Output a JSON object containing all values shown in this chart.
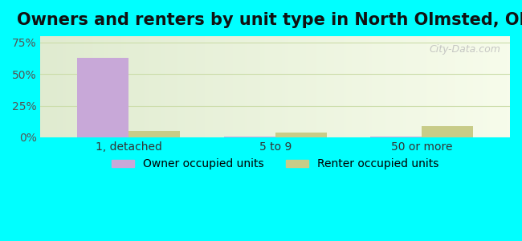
{
  "title": "Owners and renters by unit type in North Olmsted, OH",
  "categories": [
    "1, detached",
    "5 to 9",
    "50 or more"
  ],
  "owner_values": [
    63,
    0.5,
    0.8
  ],
  "renter_values": [
    5,
    4,
    9
  ],
  "owner_color": "#c8a8d8",
  "renter_color": "#c8cc88",
  "yticks": [
    0,
    25,
    50,
    75
  ],
  "ytick_labels": [
    "0%",
    "25%",
    "50%",
    "75%"
  ],
  "ylim": [
    0,
    80
  ],
  "bar_width": 0.35,
  "outer_background": "#00ffff",
  "legend_owner": "Owner occupied units",
  "legend_renter": "Renter occupied units",
  "watermark": "City-Data.com",
  "title_fontsize": 15,
  "axis_fontsize": 10,
  "legend_fontsize": 10
}
